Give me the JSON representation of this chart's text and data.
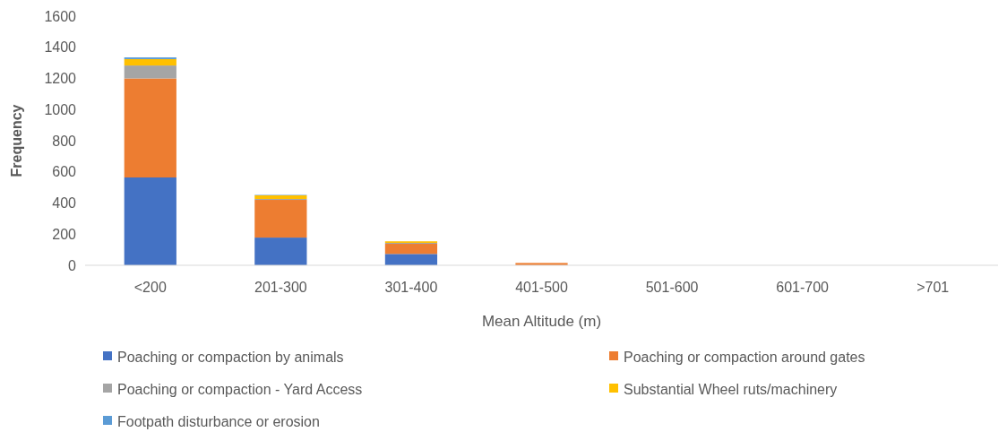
{
  "chart_data": {
    "type": "bar",
    "stacked": true,
    "xlabel": "Mean Altitude (m)",
    "ylabel": "Frequency",
    "categories": [
      "<200",
      "201-300",
      "301-400",
      "401-500",
      "501-600",
      "601-700",
      ">701"
    ],
    "series": [
      {
        "name": "Poaching or compaction by animals",
        "color": "#4472c4",
        "values": [
          564,
          178,
          73,
          0,
          0,
          0,
          0
        ]
      },
      {
        "name": "Poaching or compaction around gates",
        "color": "#ed7d31",
        "values": [
          636,
          242,
          65,
          15,
          0,
          0,
          0
        ]
      },
      {
        "name": "Poaching or compaction - Yard Access",
        "color": "#a5a5a5",
        "values": [
          83,
          6,
          6,
          0,
          0,
          0,
          0
        ]
      },
      {
        "name": "Substantial Wheel ruts/machinery",
        "color": "#ffc000",
        "values": [
          41,
          23,
          10,
          0,
          0,
          0,
          0
        ]
      },
      {
        "name": "Footpath disturbance or erosion",
        "color": "#5b9bd5",
        "values": [
          11,
          3,
          null,
          0,
          0,
          0,
          0
        ]
      }
    ],
    "ylim": [
      0,
      1600
    ],
    "yticks": [
      0,
      200,
      400,
      600,
      800,
      1000,
      1200,
      1400,
      1600
    ],
    "grid": false,
    "legend": "bottom"
  }
}
